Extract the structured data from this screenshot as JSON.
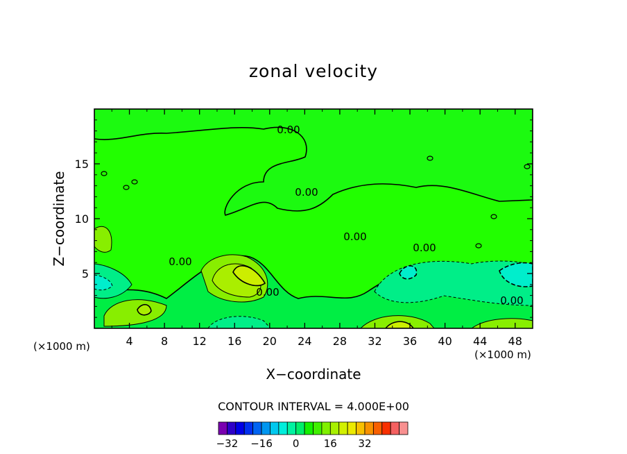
{
  "chart_data": {
    "type": "heatmap",
    "title": "zonal velocity",
    "xlabel": "X−coordinate",
    "ylabel": "Z−coordinate",
    "x_unit": "(×1000 m)",
    "xlim": [
      0,
      50
    ],
    "ylim": [
      0,
      20
    ],
    "x_ticks": [
      "4",
      "8",
      "12",
      "16",
      "20",
      "24",
      "28",
      "32",
      "36",
      "40",
      "44",
      "48"
    ],
    "x_tick_values": [
      4,
      8,
      12,
      16,
      20,
      24,
      28,
      32,
      36,
      40,
      44,
      48
    ],
    "y_ticks": [
      "5",
      "10",
      "15"
    ],
    "y_tick_values": [
      5,
      10,
      15
    ],
    "contour_interval": "CONTOUR INTERVAL = 4.000E+00",
    "contour_labels": [
      "0.00",
      "0.00",
      "0.00",
      "0.00",
      "0.00",
      "0.00",
      "0.00"
    ],
    "colorbar": {
      "tick_labels": [
        "−32",
        "−16",
        "0",
        "16",
        "32"
      ],
      "tick_values": [
        -32,
        -16,
        0,
        16,
        32
      ],
      "colors": [
        "#7a00b0",
        "#2e00c8",
        "#0000e6",
        "#0030f0",
        "#0064f2",
        "#0096f0",
        "#00c8ee",
        "#00eedc",
        "#00f2a0",
        "#00ee6a",
        "#14f000",
        "#40f000",
        "#80f000",
        "#a8f000",
        "#d2f000",
        "#ecea00",
        "#f8c000",
        "#f89200",
        "#f86000",
        "#f83000",
        "#f46060",
        "#f89090"
      ]
    },
    "palette": {
      "background": "#22ff00",
      "near_zero": "#22ff00",
      "weak_negative": "#00ee44",
      "negative": "#00ee88",
      "strong_negative": "#00eecc",
      "weak_positive": "#88ee00",
      "positive": "#aaee00",
      "strong_positive": "#ccee00"
    }
  }
}
